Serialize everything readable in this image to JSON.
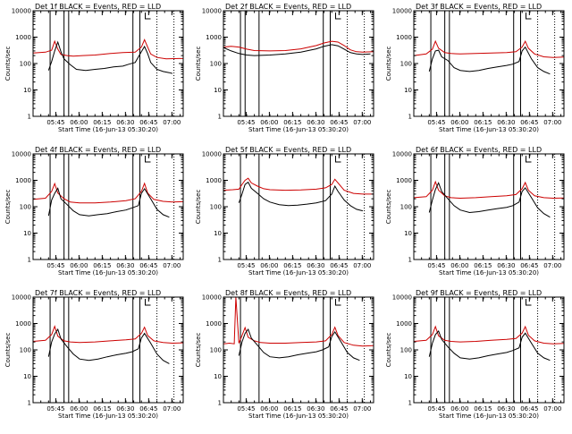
{
  "figure": {
    "panels": [
      {
        "title": "Det 1f BLACK = Events, RED = LLD"
      },
      {
        "title": "Det 2f BLACK = Events, RED = LLD"
      },
      {
        "title": "Det 3f BLACK = Events, RED = LLD"
      },
      {
        "title": "Det 4f BLACK = Events, RED = LLD"
      },
      {
        "title": "Det 5f BLACK = Events, RED = LLD"
      },
      {
        "title": "Det 6f BLACK = Events, RED = LLD"
      },
      {
        "title": "Det 7f BLACK = Events, RED = LLD"
      },
      {
        "title": "Det 8f BLACK = Events, RED = LLD"
      },
      {
        "title": "Det 9f BLACK = Events, RED = LLD"
      }
    ],
    "xlabel": "Start Time (16-Jun-13 05:30:20)",
    "ylabel": "Counts/sec",
    "x_tick_labels": [
      "05:45",
      "06:00",
      "06:15",
      "06:30",
      "06:45",
      "07:00"
    ],
    "y_tick_labels": [
      "1",
      "10",
      "100",
      "1000",
      "10000"
    ]
  },
  "chart_data": {
    "type": "line",
    "layout": "3x3 grid of identical-axis panels",
    "x_unit": "minutes after 05:30:20 (UT)",
    "y_scale": "log",
    "ylim": [
      1,
      10000
    ],
    "xlim": [
      0,
      97
    ],
    "x_ticks_minutes": [
      14.67,
      29.67,
      44.67,
      59.67,
      74.67,
      89.67
    ],
    "colors": {
      "events": "#000000",
      "lld": "#cc0000",
      "axes": "#000000"
    },
    "series_names": [
      "Events",
      "LLD"
    ],
    "panels": [
      {
        "detector": "Det 1f",
        "events": {
          "x": [
            10,
            12,
            14,
            16,
            18,
            20,
            24,
            28,
            34,
            40,
            46,
            52,
            58,
            62,
            66,
            70,
            72,
            74,
            76,
            80,
            84,
            88,
            90
          ],
          "y": [
            55,
            120,
            300,
            650,
            280,
            150,
            90,
            60,
            55,
            60,
            65,
            75,
            80,
            95,
            110,
            280,
            440,
            240,
            110,
            60,
            50,
            45,
            42
          ]
        },
        "lld": {
          "x": [
            0,
            8,
            12,
            14,
            16,
            18,
            22,
            26,
            32,
            40,
            50,
            58,
            66,
            70,
            72,
            74,
            76,
            80,
            86,
            94,
            97
          ],
          "y": [
            250,
            270,
            320,
            700,
            350,
            220,
            200,
            190,
            200,
            210,
            240,
            260,
            270,
            420,
            800,
            420,
            230,
            170,
            150,
            155,
            155
          ]
        },
        "vertical_solid": [
          11,
          20,
          23,
          64.5,
          69
        ],
        "vertical_dotted": [
          80,
          91
        ]
      },
      {
        "detector": "Det 2f",
        "events": {
          "x": [
            0,
            5,
            10,
            15,
            20,
            30,
            40,
            50,
            60,
            65,
            70,
            74,
            78,
            82,
            86,
            90,
            95
          ],
          "y": [
            400,
            300,
            240,
            210,
            200,
            210,
            230,
            270,
            360,
            450,
            520,
            470,
            350,
            260,
            230,
            220,
            230
          ]
        },
        "lld": {
          "x": [
            0,
            5,
            10,
            15,
            20,
            30,
            40,
            50,
            60,
            65,
            70,
            74,
            78,
            82,
            86,
            90,
            97
          ],
          "y": [
            420,
            450,
            420,
            350,
            310,
            300,
            310,
            360,
            480,
            600,
            700,
            650,
            480,
            330,
            280,
            270,
            280
          ]
        },
        "vertical_solid": [
          11,
          14,
          23,
          64.5,
          69
        ],
        "vertical_dotted": [
          80,
          91
        ]
      },
      {
        "detector": "Det 3f",
        "events": {
          "x": [
            10,
            12,
            14,
            16,
            18,
            22,
            26,
            30,
            36,
            42,
            48,
            54,
            60,
            64,
            68,
            70,
            72,
            76,
            80,
            84,
            88
          ],
          "y": [
            50,
            150,
            300,
            320,
            180,
            130,
            70,
            55,
            50,
            55,
            65,
            75,
            85,
            95,
            120,
            300,
            420,
            150,
            70,
            50,
            40
          ]
        },
        "lld": {
          "x": [
            0,
            8,
            12,
            14,
            16,
            20,
            24,
            30,
            40,
            50,
            60,
            66,
            70,
            72,
            74,
            78,
            84,
            90,
            97
          ],
          "y": [
            200,
            230,
            350,
            700,
            380,
            260,
            240,
            230,
            240,
            250,
            260,
            280,
            420,
            700,
            380,
            230,
            180,
            170,
            175
          ]
        },
        "vertical_solid": [
          11,
          20,
          23,
          64.5,
          69
        ],
        "vertical_dotted": [
          80,
          91
        ]
      },
      {
        "detector": "Det 4f",
        "events": {
          "x": [
            10,
            12,
            14,
            16,
            18,
            22,
            26,
            30,
            36,
            42,
            48,
            54,
            60,
            64,
            68,
            70,
            72,
            76,
            80,
            84,
            88
          ],
          "y": [
            45,
            180,
            320,
            500,
            200,
            120,
            70,
            50,
            45,
            50,
            55,
            65,
            75,
            90,
            110,
            320,
            480,
            200,
            80,
            50,
            40
          ]
        },
        "lld": {
          "x": [
            0,
            8,
            12,
            14,
            16,
            20,
            24,
            30,
            40,
            50,
            60,
            66,
            70,
            72,
            74,
            78,
            84,
            90,
            97
          ],
          "y": [
            190,
            210,
            380,
            750,
            330,
            200,
            150,
            140,
            140,
            150,
            170,
            200,
            380,
            760,
            330,
            190,
            160,
            150,
            155
          ]
        },
        "vertical_solid": [
          11,
          20,
          23,
          64.5,
          69
        ],
        "vertical_dotted": [
          80,
          91
        ]
      },
      {
        "detector": "Det 5f",
        "events": {
          "x": [
            10,
            12,
            14,
            16,
            18,
            22,
            26,
            30,
            36,
            42,
            48,
            54,
            60,
            66,
            70,
            72,
            74,
            78,
            82,
            86,
            90
          ],
          "y": [
            140,
            300,
            700,
            850,
            500,
            320,
            200,
            150,
            120,
            110,
            115,
            125,
            140,
            170,
            300,
            600,
            380,
            180,
            110,
            80,
            70
          ]
        },
        "lld": {
          "x": [
            0,
            6,
            10,
            12,
            14,
            16,
            18,
            22,
            26,
            30,
            40,
            50,
            60,
            66,
            70,
            72,
            74,
            78,
            84,
            90,
            97
          ],
          "y": [
            420,
            440,
            460,
            700,
            1000,
            1200,
            800,
            600,
            480,
            440,
            420,
            430,
            460,
            520,
            700,
            1100,
            800,
            420,
            320,
            300,
            300
          ]
        },
        "vertical_solid": [
          11,
          23,
          64.5,
          69
        ],
        "vertical_dotted": [
          80,
          91
        ]
      },
      {
        "detector": "Det 6f",
        "events": {
          "x": [
            10,
            12,
            14,
            16,
            18,
            22,
            26,
            30,
            36,
            42,
            48,
            54,
            60,
            64,
            68,
            70,
            72,
            76,
            80,
            84,
            88
          ],
          "y": [
            60,
            180,
            450,
            800,
            380,
            200,
            110,
            75,
            60,
            65,
            75,
            85,
            95,
            110,
            150,
            380,
            520,
            220,
            90,
            55,
            40
          ]
        },
        "lld": {
          "x": [
            0,
            8,
            12,
            14,
            16,
            20,
            24,
            30,
            40,
            50,
            60,
            66,
            70,
            72,
            74,
            78,
            84,
            90,
            97
          ],
          "y": [
            220,
            240,
            420,
            880,
            420,
            260,
            220,
            210,
            220,
            240,
            260,
            290,
            480,
            820,
            420,
            260,
            220,
            210,
            215
          ]
        },
        "vertical_solid": [
          11,
          20,
          23,
          64.5,
          69
        ],
        "vertical_dotted": [
          80,
          91
        ]
      },
      {
        "detector": "Det 7f",
        "events": {
          "x": [
            10,
            12,
            14,
            16,
            18,
            22,
            26,
            30,
            36,
            42,
            48,
            54,
            60,
            64,
            68,
            70,
            72,
            76,
            80,
            84,
            88
          ],
          "y": [
            55,
            200,
            400,
            600,
            260,
            130,
            70,
            45,
            40,
            45,
            55,
            65,
            75,
            85,
            110,
            280,
            420,
            180,
            70,
            40,
            30
          ]
        },
        "lld": {
          "x": [
            0,
            8,
            12,
            14,
            16,
            20,
            24,
            30,
            40,
            50,
            60,
            66,
            70,
            72,
            74,
            78,
            84,
            90,
            97
          ],
          "y": [
            210,
            230,
            380,
            780,
            330,
            220,
            200,
            190,
            200,
            220,
            240,
            260,
            420,
            720,
            350,
            220,
            190,
            180,
            185
          ]
        },
        "vertical_solid": [
          11,
          20,
          23,
          64.5,
          69
        ],
        "vertical_dotted": [
          80,
          91
        ]
      },
      {
        "detector": "Det 8f",
        "events": {
          "x": [
            10,
            12,
            14,
            16,
            18,
            22,
            26,
            30,
            36,
            42,
            48,
            54,
            60,
            64,
            68,
            70,
            72,
            76,
            80,
            84,
            88
          ],
          "y": [
            60,
            200,
            420,
            600,
            280,
            150,
            80,
            55,
            50,
            55,
            65,
            75,
            85,
            100,
            130,
            320,
            480,
            200,
            80,
            50,
            40
          ]
        },
        "lld": {
          "x": [
            0,
            4,
            7,
            8,
            10,
            12,
            14,
            16,
            20,
            24,
            30,
            40,
            50,
            60,
            66,
            70,
            72,
            74,
            78,
            84,
            90,
            97
          ],
          "y": [
            170,
            180,
            170,
            10000,
            180,
            350,
            700,
            300,
            220,
            190,
            180,
            180,
            190,
            200,
            220,
            380,
            720,
            350,
            190,
            150,
            140,
            145
          ]
        },
        "vertical_solid": [
          11,
          23,
          64.5,
          69
        ],
        "vertical_dotted": [
          80,
          91
        ]
      },
      {
        "detector": "Det 9f",
        "events": {
          "x": [
            10,
            12,
            14,
            16,
            18,
            22,
            26,
            30,
            36,
            42,
            48,
            54,
            60,
            64,
            68,
            70,
            72,
            76,
            80,
            84,
            88
          ],
          "y": [
            55,
            180,
            380,
            520,
            250,
            130,
            75,
            50,
            45,
            50,
            60,
            70,
            80,
            95,
            120,
            300,
            430,
            180,
            75,
            50,
            40
          ]
        },
        "lld": {
          "x": [
            0,
            8,
            12,
            14,
            16,
            20,
            24,
            30,
            40,
            50,
            60,
            66,
            70,
            72,
            74,
            78,
            84,
            90,
            97
          ],
          "y": [
            210,
            230,
            380,
            760,
            340,
            230,
            210,
            200,
            210,
            230,
            250,
            270,
            430,
            760,
            360,
            220,
            180,
            170,
            175
          ]
        },
        "vertical_solid": [
          11,
          20,
          23,
          64.5,
          69
        ],
        "vertical_dotted": [
          80,
          91
        ]
      }
    ]
  }
}
